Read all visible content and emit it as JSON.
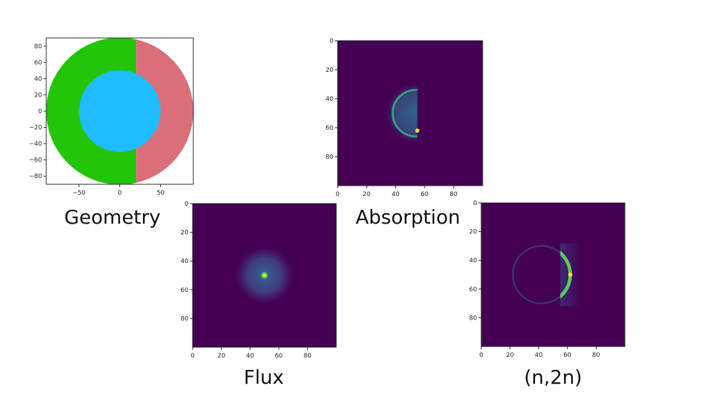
{
  "chart_data": [
    {
      "type": "geometry",
      "caption": "Geometry",
      "xlim": [
        -90,
        90
      ],
      "ylim": [
        -90,
        90
      ],
      "xticks": [
        -50,
        0,
        50
      ],
      "yticks": [
        -80,
        -60,
        -40,
        -20,
        0,
        20,
        40,
        60,
        80
      ],
      "regions": [
        {
          "name": "outer-left",
          "shape": "half-disc-left",
          "radius": 90,
          "cut_x": 20,
          "color": "#22c508"
        },
        {
          "name": "outer-right",
          "shape": "half-disc-right",
          "radius": 90,
          "cut_x": 20,
          "color": "#da6f7b"
        },
        {
          "name": "inner",
          "shape": "disc",
          "radius": 50,
          "color": "#1fbdff"
        }
      ]
    },
    {
      "type": "heatmap",
      "caption": "Absorption",
      "xlim": [
        0,
        100
      ],
      "ylim": [
        0,
        100
      ],
      "xticks": [
        0,
        20,
        40,
        60,
        80
      ],
      "yticks": [
        0,
        20,
        40,
        60,
        80
      ],
      "background": "#440154",
      "features": {
        "kind": "half-ring",
        "center": [
          54,
          50
        ],
        "outer_radius": 20,
        "ring_radius": 16,
        "cut_x": 55,
        "hotspot": [
          55,
          62
        ]
      }
    },
    {
      "type": "heatmap",
      "caption": "Flux",
      "xlim": [
        0,
        100
      ],
      "ylim": [
        0,
        100
      ],
      "xticks": [
        0,
        20,
        40,
        60,
        80
      ],
      "yticks": [
        0,
        20,
        40,
        60,
        80
      ],
      "background": "#440154",
      "features": {
        "kind": "blob",
        "center": [
          50,
          50
        ],
        "radius": 20,
        "hotspot": [
          50,
          50
        ]
      }
    },
    {
      "type": "heatmap",
      "caption": "(n,2n)",
      "xlim": [
        0,
        100
      ],
      "ylim": [
        0,
        100
      ],
      "xticks": [
        0,
        20,
        40,
        60,
        80
      ],
      "yticks": [
        0,
        20,
        40,
        60,
        80
      ],
      "background": "#440154",
      "features": {
        "kind": "arc",
        "center": [
          42,
          50
        ],
        "radius": 20,
        "cut_x": 55,
        "peak": [
          62,
          50
        ]
      }
    }
  ]
}
